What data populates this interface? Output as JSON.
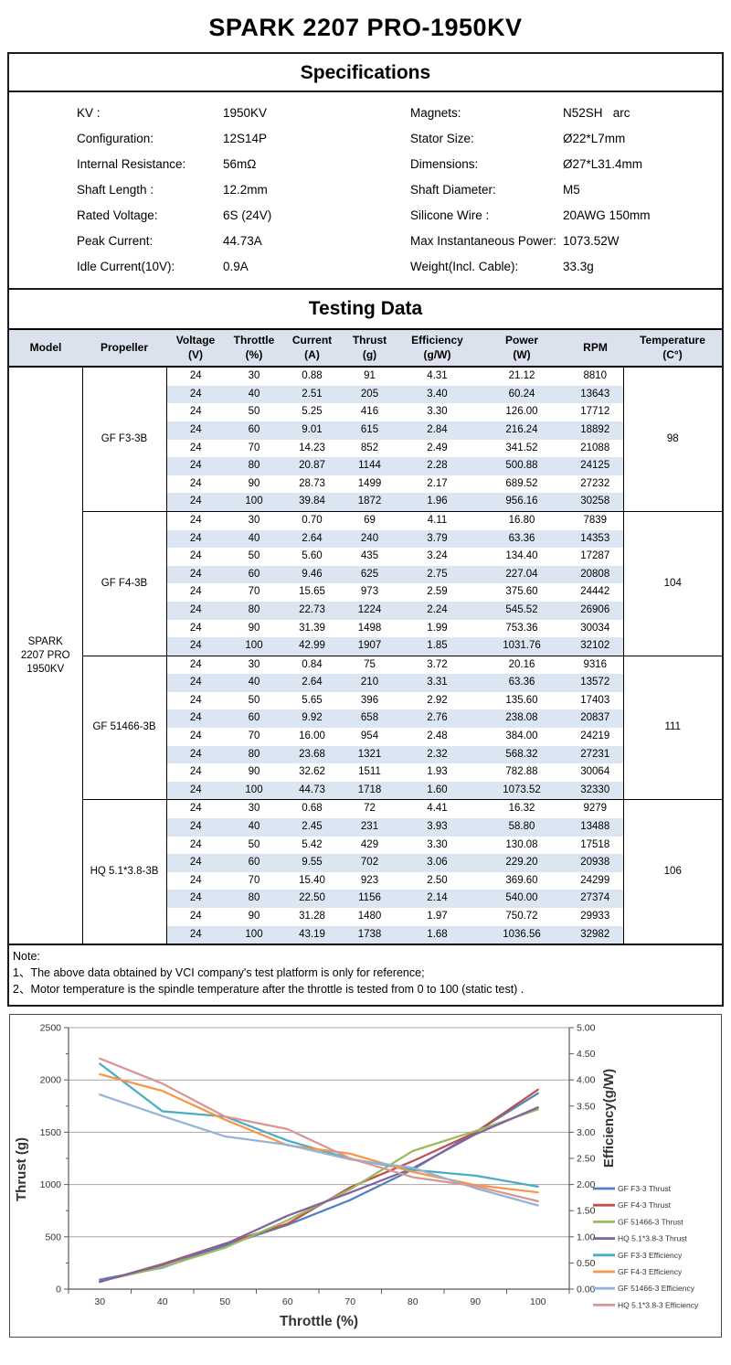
{
  "page": {
    "title": "SPARK 2207 PRO-1950KV"
  },
  "specifications": {
    "title": "Specifications",
    "rows": [
      [
        "KV :",
        "1950KV",
        "Magnets:",
        "N52SH   arc"
      ],
      [
        "Configuration:",
        "12S14P",
        "Stator Size:",
        "Ø22*L7mm"
      ],
      [
        "Internal Resistance:",
        "56mΩ",
        "Dimensions:",
        "Ø27*L31.4mm"
      ],
      [
        "Shaft Length :",
        "12.2mm",
        "Shaft Diameter:",
        "M5"
      ],
      [
        "Rated Voltage:",
        "6S (24V)",
        "Silicone Wire :",
        "20AWG 150mm"
      ],
      [
        "Peak Current:",
        "44.73A",
        "Max Instantaneous Power:",
        "1073.52W"
      ],
      [
        "Idle Current(10V):",
        "0.9A",
        "Weight(Incl. Cable):",
        "33.3g"
      ]
    ]
  },
  "testing": {
    "title": "Testing Data",
    "model_lines": [
      "SPARK",
      "2207 PRO",
      "1950KV"
    ],
    "columns": [
      {
        "l1": "Model",
        "l2": ""
      },
      {
        "l1": "Propeller",
        "l2": ""
      },
      {
        "l1": "Voltage",
        "l2": "(V)"
      },
      {
        "l1": "Throttle",
        "l2": "(%)"
      },
      {
        "l1": "Current",
        "l2": "(A)"
      },
      {
        "l1": "Thrust",
        "l2": "(g)"
      },
      {
        "l1": "Efficiency",
        "l2": "(g/W)"
      },
      {
        "l1": "Power",
        "l2": "(W)"
      },
      {
        "l1": "RPM",
        "l2": ""
      },
      {
        "l1": "Temperature",
        "l2": "(C°)"
      }
    ],
    "groups": [
      {
        "propeller": "GF F3-3B",
        "temperature": "98",
        "rows": [
          [
            "24",
            "30",
            "0.88",
            "91",
            "4.31",
            "21.12",
            "8810"
          ],
          [
            "24",
            "40",
            "2.51",
            "205",
            "3.40",
            "60.24",
            "13643"
          ],
          [
            "24",
            "50",
            "5.25",
            "416",
            "3.30",
            "126.00",
            "17712"
          ],
          [
            "24",
            "60",
            "9.01",
            "615",
            "2.84",
            "216.24",
            "18892"
          ],
          [
            "24",
            "70",
            "14.23",
            "852",
            "2.49",
            "341.52",
            "21088"
          ],
          [
            "24",
            "80",
            "20.87",
            "1144",
            "2.28",
            "500.88",
            "24125"
          ],
          [
            "24",
            "90",
            "28.73",
            "1499",
            "2.17",
            "689.52",
            "27232"
          ],
          [
            "24",
            "100",
            "39.84",
            "1872",
            "1.96",
            "956.16",
            "30258"
          ]
        ]
      },
      {
        "propeller": "GF F4-3B",
        "temperature": "104",
        "rows": [
          [
            "24",
            "30",
            "0.70",
            "69",
            "4.11",
            "16.80",
            "7839"
          ],
          [
            "24",
            "40",
            "2.64",
            "240",
            "3.79",
            "63.36",
            "14353"
          ],
          [
            "24",
            "50",
            "5.60",
            "435",
            "3.24",
            "134.40",
            "17287"
          ],
          [
            "24",
            "60",
            "9.46",
            "625",
            "2.75",
            "227.04",
            "20808"
          ],
          [
            "24",
            "70",
            "15.65",
            "973",
            "2.59",
            "375.60",
            "24442"
          ],
          [
            "24",
            "80",
            "22.73",
            "1224",
            "2.24",
            "545.52",
            "26906"
          ],
          [
            "24",
            "90",
            "31.39",
            "1498",
            "1.99",
            "753.36",
            "30034"
          ],
          [
            "24",
            "100",
            "42.99",
            "1907",
            "1.85",
            "1031.76",
            "32102"
          ]
        ]
      },
      {
        "propeller": "GF 51466-3B",
        "temperature": "111",
        "rows": [
          [
            "24",
            "30",
            "0.84",
            "75",
            "3.72",
            "20.16",
            "9316"
          ],
          [
            "24",
            "40",
            "2.64",
            "210",
            "3.31",
            "63.36",
            "13572"
          ],
          [
            "24",
            "50",
            "5.65",
            "396",
            "2.92",
            "135.60",
            "17403"
          ],
          [
            "24",
            "60",
            "9.92",
            "658",
            "2.76",
            "238.08",
            "20837"
          ],
          [
            "24",
            "70",
            "16.00",
            "954",
            "2.48",
            "384.00",
            "24219"
          ],
          [
            "24",
            "80",
            "23.68",
            "1321",
            "2.32",
            "568.32",
            "27231"
          ],
          [
            "24",
            "90",
            "32.62",
            "1511",
            "1.93",
            "782.88",
            "30064"
          ],
          [
            "24",
            "100",
            "44.73",
            "1718",
            "1.60",
            "1073.52",
            "32330"
          ]
        ]
      },
      {
        "propeller": "HQ 5.1*3.8-3B",
        "temperature": "106",
        "rows": [
          [
            "24",
            "30",
            "0.68",
            "72",
            "4.41",
            "16.32",
            "9279"
          ],
          [
            "24",
            "40",
            "2.45",
            "231",
            "3.93",
            "58.80",
            "13488"
          ],
          [
            "24",
            "50",
            "5.42",
            "429",
            "3.30",
            "130.08",
            "17518"
          ],
          [
            "24",
            "60",
            "9.55",
            "702",
            "3.06",
            "229.20",
            "20938"
          ],
          [
            "24",
            "70",
            "15.40",
            "923",
            "2.50",
            "369.60",
            "24299"
          ],
          [
            "24",
            "80",
            "22.50",
            "1156",
            "2.14",
            "540.00",
            "27374"
          ],
          [
            "24",
            "90",
            "31.28",
            "1480",
            "1.97",
            "750.72",
            "29933"
          ],
          [
            "24",
            "100",
            "43.19",
            "1738",
            "1.68",
            "1036.56",
            "32982"
          ]
        ]
      }
    ]
  },
  "note": {
    "heading": "Note:",
    "lines": [
      "1、The above data obtained by VCI company's test platform is only for reference;",
      "2、Motor temperature is the spindle temperature after the throttle is tested from 0 to 100 (static test) ."
    ]
  },
  "chart_data": {
    "type": "line",
    "title": "",
    "x": [
      30,
      40,
      50,
      60,
      70,
      80,
      90,
      100
    ],
    "xlabel": "Throttle (%)",
    "ylabel_left": "Thrust (g)",
    "ylabel_right": "Efficiency(g/W)",
    "ylim_left": [
      0,
      2500
    ],
    "ytick_step_left": 500,
    "ylim_right": [
      0,
      5
    ],
    "ytick_step_right": 0.5,
    "grid": "horizontal-major",
    "legend_position": "right",
    "series": [
      {
        "name": "GF F3-3 Thrust",
        "axis": "left",
        "color": "#4f81bd",
        "values": [
          91,
          205,
          416,
          615,
          852,
          1144,
          1499,
          1872
        ]
      },
      {
        "name": "GF F4-3 Thrust",
        "axis": "left",
        "color": "#c0504d",
        "values": [
          69,
          240,
          435,
          625,
          973,
          1224,
          1498,
          1907
        ]
      },
      {
        "name": "GF 51466-3 Thrust",
        "axis": "left",
        "color": "#9bbb59",
        "values": [
          75,
          210,
          396,
          658,
          954,
          1321,
          1511,
          1718
        ]
      },
      {
        "name": "HQ 5.1*3.8-3 Thrust",
        "axis": "left",
        "color": "#8064a2",
        "values": [
          72,
          231,
          429,
          702,
          923,
          1156,
          1480,
          1738
        ]
      },
      {
        "name": "GF F3-3 Efficiency",
        "axis": "right",
        "color": "#4bacc6",
        "values": [
          4.31,
          3.4,
          3.3,
          2.84,
          2.49,
          2.28,
          2.17,
          1.96
        ]
      },
      {
        "name": "GF F4-3 Efficiency",
        "axis": "right",
        "color": "#f79646",
        "values": [
          4.11,
          3.79,
          3.24,
          2.75,
          2.59,
          2.24,
          1.99,
          1.85
        ]
      },
      {
        "name": "GF 51466-3 Efficiency",
        "axis": "right",
        "color": "#95b3d7",
        "values": [
          3.72,
          3.31,
          2.92,
          2.76,
          2.48,
          2.32,
          1.93,
          1.6
        ]
      },
      {
        "name": "HQ 5.1*3.8-3 Efficiency",
        "axis": "right",
        "color": "#d99694",
        "values": [
          4.41,
          3.93,
          3.3,
          3.06,
          2.5,
          2.14,
          1.97,
          1.68
        ]
      }
    ],
    "colors": {
      "table_header_bg": "#dbe2ee",
      "table_stripe_bg": "#dce6f2",
      "grid_line": "#a6a6a6",
      "axis_line": "#595959"
    }
  }
}
